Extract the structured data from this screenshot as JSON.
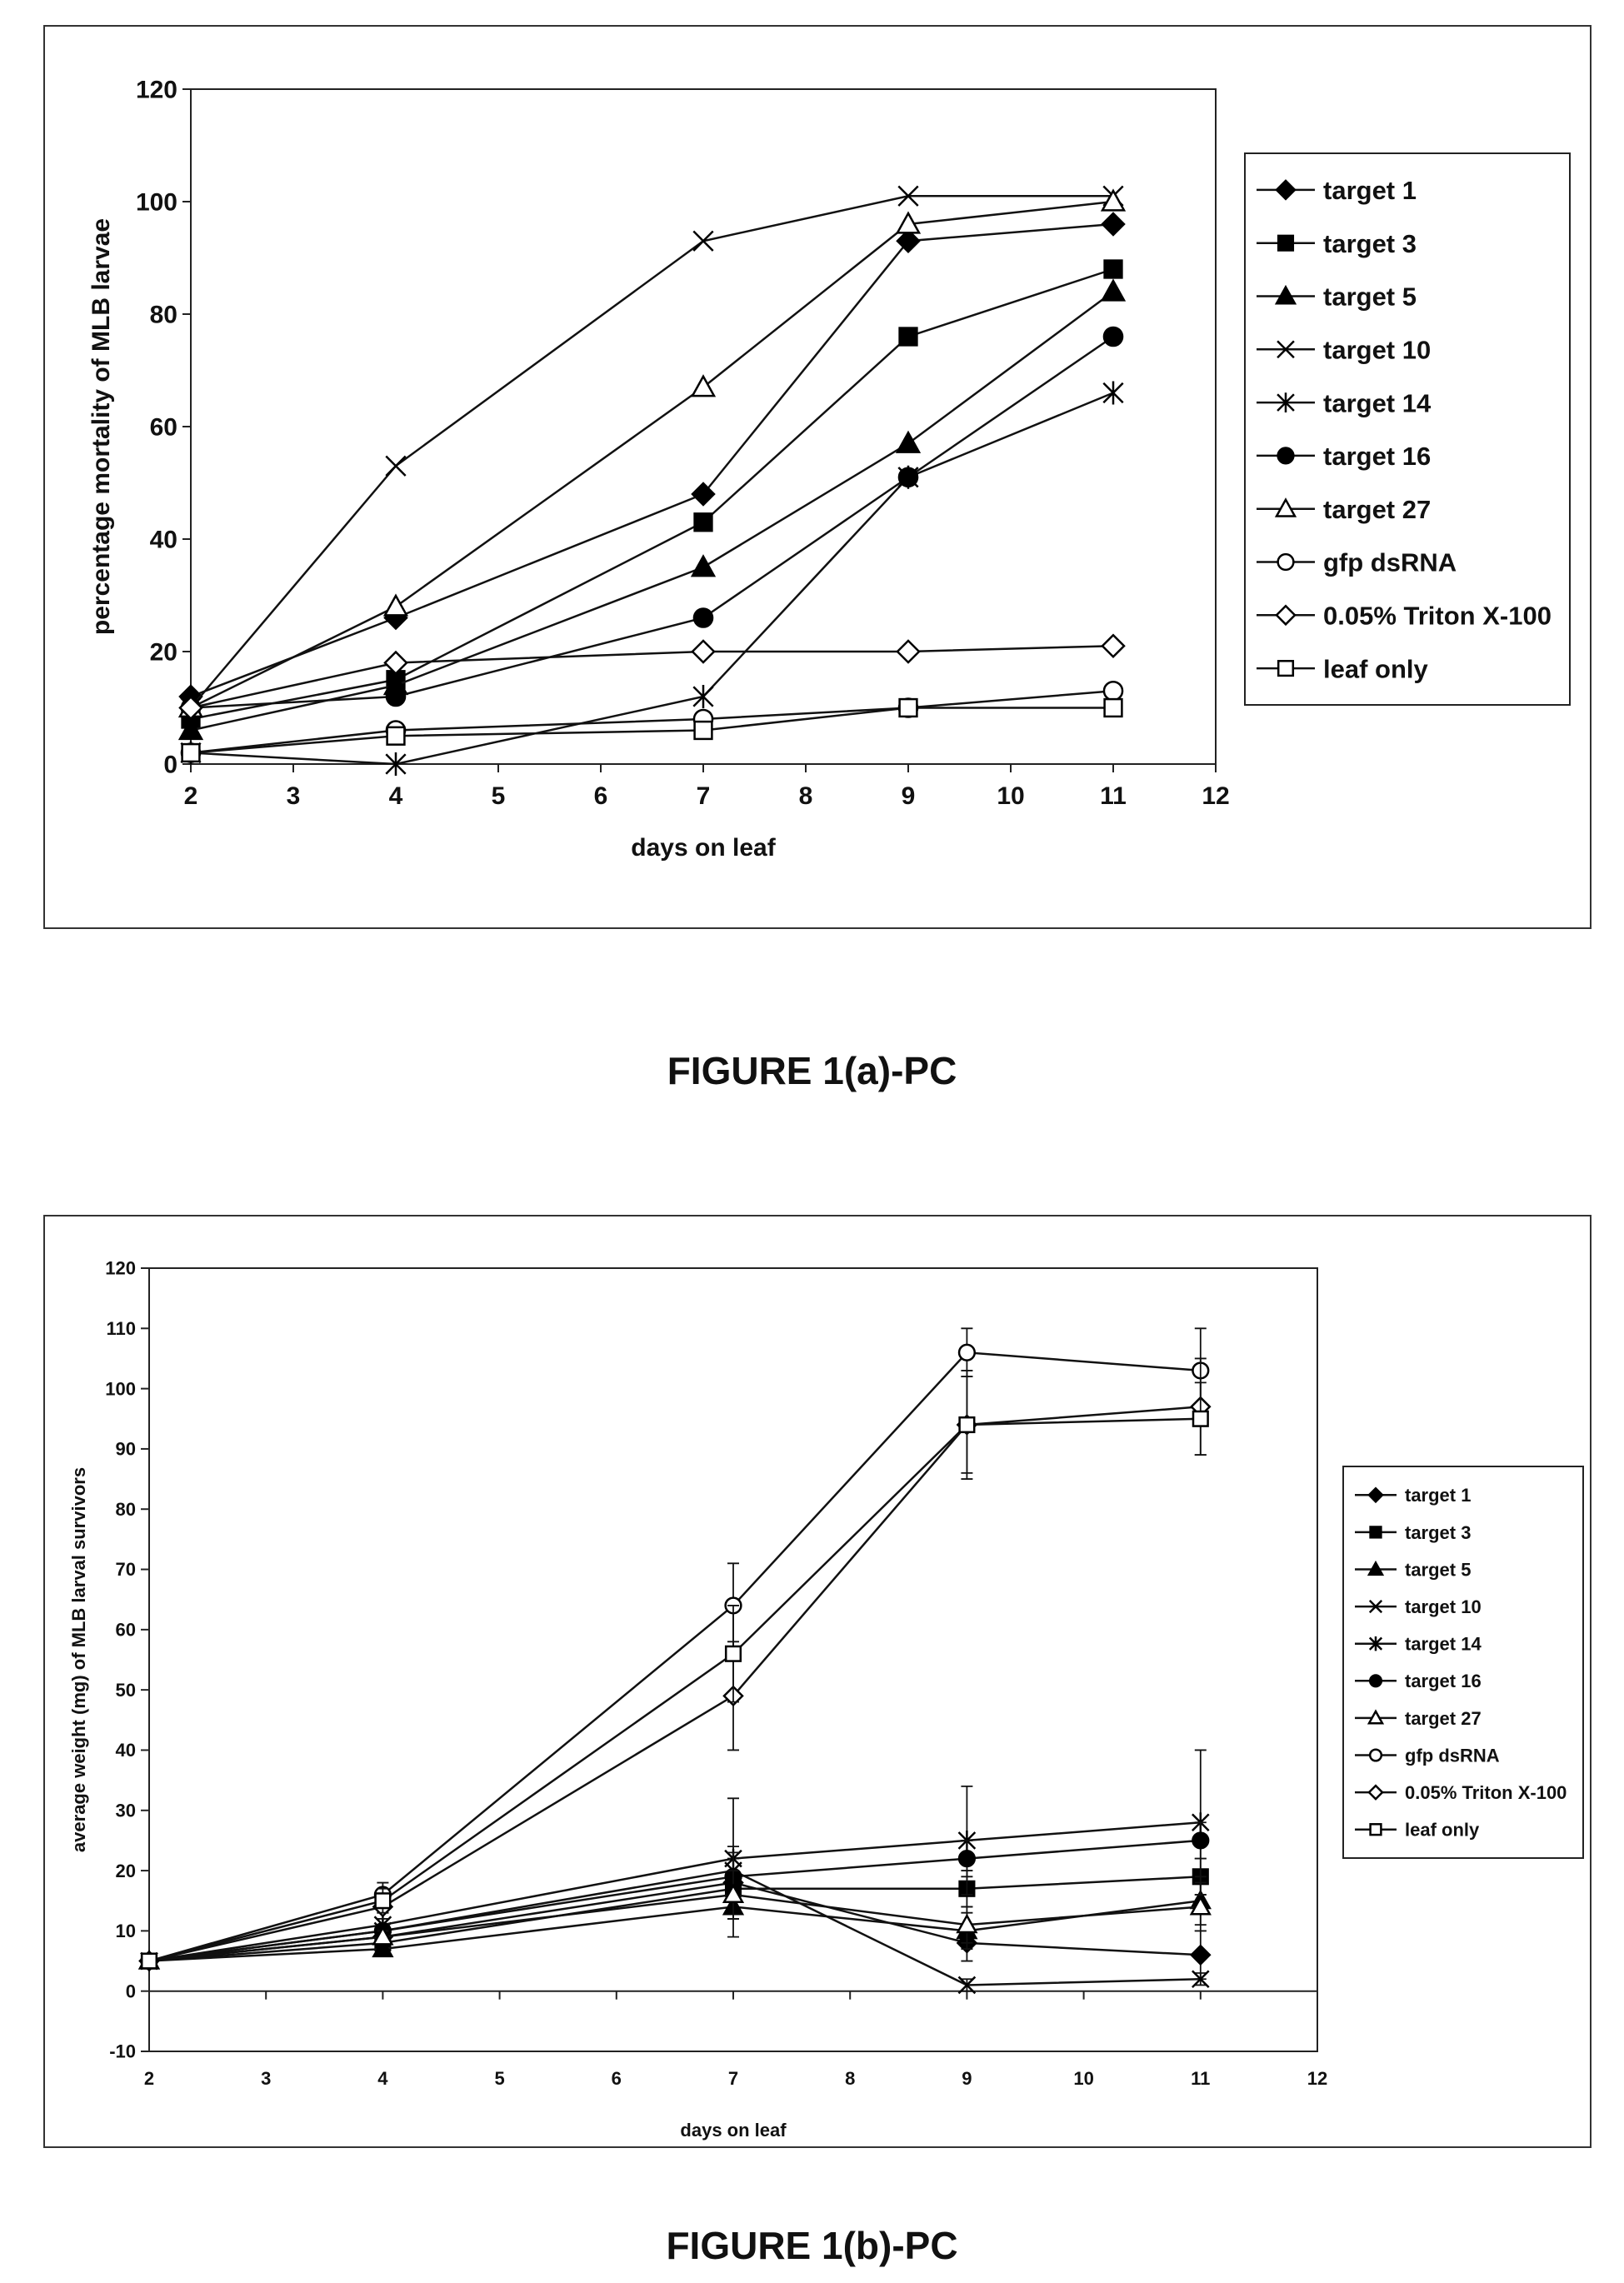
{
  "figures": [
    {
      "caption": "FIGURE 1(a)-PC"
    },
    {
      "caption": "FIGURE 1(b)-PC"
    }
  ],
  "chart_data": [
    {
      "type": "line",
      "title": "",
      "xlabel": "days on leaf",
      "ylabel": "percentage mortality of MLB larvae",
      "xlim": [
        2,
        12
      ],
      "ylim": [
        0,
        120
      ],
      "xticks": [
        2,
        3,
        4,
        5,
        6,
        7,
        8,
        9,
        10,
        11,
        12
      ],
      "yticks": [
        0,
        20,
        40,
        60,
        80,
        100,
        120
      ],
      "legend_position": "right",
      "grid": false,
      "x": [
        2,
        4,
        7,
        9,
        11
      ],
      "series": [
        {
          "name": "target 1",
          "marker": "diamond-filled",
          "values": [
            12,
            26,
            48,
            93,
            96
          ]
        },
        {
          "name": "target 3",
          "marker": "square-filled",
          "values": [
            8,
            15,
            43,
            76,
            88
          ]
        },
        {
          "name": "target 5",
          "marker": "triangle-filled",
          "values": [
            6,
            14,
            35,
            57,
            84
          ]
        },
        {
          "name": "target 10",
          "marker": "x",
          "values": [
            10,
            53,
            93,
            101,
            101
          ]
        },
        {
          "name": "target 14",
          "marker": "star",
          "values": [
            2,
            0,
            12,
            51,
            66
          ]
        },
        {
          "name": "target 16",
          "marker": "circle-filled",
          "values": [
            10,
            12,
            26,
            51,
            76
          ]
        },
        {
          "name": "target 27",
          "marker": "triangle-open",
          "values": [
            10,
            28,
            67,
            96,
            100
          ]
        },
        {
          "name": "gfp dsRNA",
          "marker": "circle-open",
          "values": [
            2,
            6,
            8,
            10,
            13
          ]
        },
        {
          "name": "0.05% Triton X-100",
          "marker": "diamond-open",
          "values": [
            10,
            18,
            20,
            20,
            21
          ]
        },
        {
          "name": "leaf only",
          "marker": "square-open",
          "values": [
            2,
            5,
            6,
            10,
            10
          ]
        }
      ]
    },
    {
      "type": "line",
      "title": "",
      "xlabel": "days on leaf",
      "ylabel": "average weight (mg) of MLB larval survivors",
      "xlim": [
        2,
        12
      ],
      "ylim": [
        -10,
        120
      ],
      "xticks": [
        2,
        3,
        4,
        5,
        6,
        7,
        8,
        9,
        10,
        11,
        12
      ],
      "yticks": [
        -10,
        0,
        10,
        20,
        30,
        40,
        50,
        60,
        70,
        80,
        90,
        100,
        110,
        120
      ],
      "legend_position": "right",
      "grid": false,
      "error_bars": true,
      "x": [
        2,
        4,
        7,
        9,
        11
      ],
      "series": [
        {
          "name": "target 1",
          "marker": "diamond-filled",
          "values": [
            5,
            9,
            18,
            8,
            6
          ]
        },
        {
          "name": "target 3",
          "marker": "square-filled",
          "values": [
            5,
            8,
            17,
            17,
            19
          ]
        },
        {
          "name": "target 5",
          "marker": "triangle-filled",
          "values": [
            5,
            7,
            14,
            10,
            15
          ]
        },
        {
          "name": "target 10",
          "marker": "x",
          "values": [
            5,
            10,
            20,
            1,
            2
          ]
        },
        {
          "name": "target 14",
          "marker": "star",
          "values": [
            5,
            11,
            22,
            25,
            28
          ]
        },
        {
          "name": "target 16",
          "marker": "circle-filled",
          "values": [
            5,
            10,
            19,
            22,
            25
          ]
        },
        {
          "name": "target 27",
          "marker": "triangle-open",
          "values": [
            5,
            9,
            16,
            11,
            14
          ]
        },
        {
          "name": "gfp dsRNA",
          "marker": "circle-open",
          "values": [
            5,
            16,
            64,
            106,
            103
          ]
        },
        {
          "name": "0.05% Triton X-100",
          "marker": "diamond-open",
          "values": [
            5,
            14,
            49,
            94,
            97
          ]
        },
        {
          "name": "leaf only",
          "marker": "square-open",
          "values": [
            5,
            15,
            56,
            94,
            95
          ]
        }
      ],
      "error": [
        [
          0,
          1,
          4,
          3,
          4
        ],
        [
          0,
          1,
          5,
          3,
          3
        ],
        [
          0,
          1,
          5,
          3,
          4
        ],
        [
          0,
          1,
          4,
          1,
          1
        ],
        [
          0,
          2,
          10,
          9,
          12
        ],
        [
          0,
          1,
          4,
          3,
          3
        ],
        [
          0,
          1,
          4,
          3,
          4
        ],
        [
          0,
          2,
          7,
          4,
          7
        ],
        [
          0,
          2,
          9,
          9,
          8
        ],
        [
          0,
          2,
          8,
          8,
          6
        ]
      ]
    }
  ]
}
